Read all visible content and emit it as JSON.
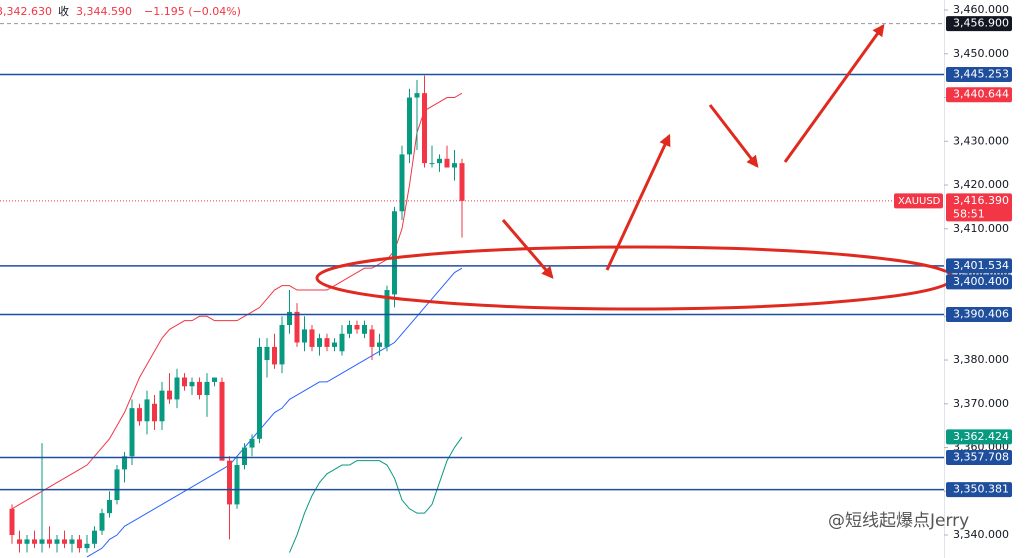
{
  "header": {
    "low": "3,342.630",
    "close_label": "收",
    "close": "3,344.590",
    "change": "−1.195 (−0.04%)"
  },
  "watermark": "@短线起爆点Jerry",
  "chart_data": {
    "type": "candlestick",
    "ylim": [
      3334.75,
      3462.29
    ],
    "yticks": [
      {
        "value": 3340,
        "label": "3,340.000"
      },
      {
        "value": 3350,
        "label": "3,350.000"
      },
      {
        "value": 3360,
        "label": "3,360.000"
      },
      {
        "value": 3370,
        "label": "3,370.000"
      },
      {
        "value": 3380,
        "label": "3,380.000"
      },
      {
        "value": 3390,
        "label": "3,390.000"
      },
      {
        "value": 3400,
        "label": "3,400.000"
      },
      {
        "value": 3410,
        "label": "3,410.000"
      },
      {
        "value": 3420,
        "label": "3,420.000"
      },
      {
        "value": 3430,
        "label": "3,430.000"
      },
      {
        "value": 3440,
        "label": "3,440.000"
      },
      {
        "value": 3450,
        "label": "3,450.000"
      },
      {
        "value": 3460,
        "label": "3,460.000"
      }
    ],
    "categories": [
      null,
      null,
      null,
      null,
      null,
      null,
      null,
      null,
      null,
      null,
      null,
      null,
      null,
      null,
      null,
      null,
      null,
      null,
      null,
      null,
      null,
      null,
      null,
      null,
      null,
      null,
      null,
      null,
      null,
      null,
      null,
      null,
      null,
      null,
      null,
      null,
      null,
      null,
      null,
      null,
      null,
      null,
      null,
      null,
      null,
      null,
      null,
      null,
      null,
      null,
      null,
      null,
      null,
      null,
      null,
      null,
      null,
      null,
      null,
      null,
      null
    ],
    "up_color": "#089981",
    "down_color": "#f23645",
    "open": [
      3346,
      3339,
      3338,
      3339,
      3338,
      3339,
      3338,
      3339,
      3338,
      3339,
      3337,
      3338,
      3341,
      3345,
      3348,
      3355,
      3358,
      3369,
      3366,
      3370,
      3366,
      3373,
      3371,
      3376,
      3374,
      3375,
      3372,
      3375,
      3375,
      3357,
      3347,
      3356,
      3360,
      3362,
      3380,
      3383,
      3379,
      3388,
      3391,
      3384,
      3387,
      3383,
      3385,
      3383,
      3382,
      3386,
      3388,
      3386,
      3387,
      3383,
      3383,
      3395,
      3414,
      3427,
      3440,
      3441,
      3425,
      3425,
      3426,
      3424,
      3425
    ],
    "high": [
      3347,
      3341,
      3340,
      3341,
      3361,
      3342,
      3340,
      3341,
      3340,
      3340,
      3340,
      3342,
      3346,
      3350,
      3356,
      3359,
      3371,
      3370,
      3373,
      3372,
      3375,
      3377,
      3378,
      3377,
      3376,
      3376,
      3377,
      3376,
      3376,
      3358,
      3358,
      3361,
      3363,
      3385,
      3385,
      3386,
      3390,
      3396,
      3393,
      3390,
      3388,
      3386,
      3386,
      3385,
      3388,
      3389,
      3389,
      3389,
      3388,
      3386,
      3397,
      3415,
      3429,
      3442,
      3444,
      3445,
      3429,
      3427,
      3429,
      3428,
      3426
    ],
    "low": [
      3338,
      3336,
      3336,
      3337,
      3336,
      3337,
      3336,
      3337,
      3336,
      3336,
      3336,
      3337,
      3340,
      3344,
      3347,
      3352,
      3356,
      3365,
      3363,
      3364,
      3364,
      3370,
      3369,
      3373,
      3372,
      3371,
      3367,
      3374,
      3357,
      3339,
      3346,
      3355,
      3358,
      3361,
      3376,
      3378,
      3377,
      3386,
      3383,
      3382,
      3382,
      3381,
      3382,
      3382,
      3381,
      3385,
      3386,
      3385,
      3380,
      3381,
      3382,
      3392,
      3412,
      3425,
      3428,
      3424,
      3424,
      3423,
      3424,
      3421,
      3408
    ],
    "close": [
      3340,
      3338,
      3339,
      3338,
      3339,
      3338,
      3339,
      3338,
      3339,
      3337,
      3338,
      3341,
      3345,
      3348,
      3355,
      3358,
      3369,
      3366,
      3371,
      3366,
      3373,
      3371,
      3376,
      3374,
      3375,
      3372,
      3375,
      3376,
      3357,
      3347,
      3356,
      3360,
      3362,
      3383,
      3383,
      3379,
      3388,
      3391,
      3384,
      3387,
      3383,
      3385,
      3383,
      3384,
      3386,
      3388,
      3387,
      3388,
      3383,
      3384,
      3396,
      3414,
      3427,
      3440,
      3441,
      3425,
      3425,
      3426,
      3424,
      3425,
      3416.39
    ],
    "bands": [
      {
        "color": "#f23645",
        "values": [
          3346,
          3347,
          3348,
          3349,
          3350,
          3351,
          3352,
          3353,
          3354,
          3355,
          3356,
          3358,
          3360,
          3362,
          3365,
          3368,
          3372,
          3376,
          3379,
          3382,
          3385,
          3387,
          3388,
          3389,
          3389,
          3390,
          3390,
          3389,
          3389,
          3389,
          3389,
          3390,
          3391,
          3392,
          3394,
          3396,
          3397,
          3397,
          3396,
          3396,
          3396,
          3396,
          3396,
          3397,
          3398,
          3399,
          3400,
          3401,
          3401,
          3402,
          3403,
          3405,
          3410,
          3420,
          3432,
          3437,
          3438,
          3439,
          3440,
          3440,
          3441
        ]
      },
      {
        "color": "#2962ff",
        "values": [
          null,
          null,
          null,
          null,
          null,
          null,
          null,
          null,
          null,
          null,
          3335,
          3336,
          3337,
          3339,
          3340,
          3342,
          3343,
          3344,
          3345,
          3346,
          3347,
          3348,
          3349,
          3350,
          3351,
          3352,
          3353,
          3354,
          3355,
          3356,
          3358,
          3360,
          3362,
          3364,
          3366,
          3368,
          3369,
          3371,
          3372,
          3373,
          3374,
          3375,
          3375,
          3376,
          3377,
          3378,
          3379,
          3380,
          3381,
          3382,
          3383,
          3384,
          3386,
          3388,
          3390,
          3392,
          3394,
          3396,
          3398,
          3400,
          3401
        ]
      },
      {
        "color": "#089981",
        "values": [
          null,
          null,
          null,
          null,
          null,
          null,
          null,
          null,
          null,
          null,
          null,
          null,
          null,
          null,
          null,
          null,
          null,
          null,
          null,
          null,
          null,
          null,
          null,
          null,
          null,
          null,
          null,
          null,
          null,
          null,
          null,
          null,
          null,
          null,
          null,
          null,
          null,
          3336,
          3340,
          3345,
          3349,
          3352,
          3354,
          3355,
          3356,
          3356,
          3357,
          3357,
          3357,
          3357,
          3356,
          3353,
          3348,
          3346,
          3345,
          3345,
          3347,
          3352,
          3357,
          3360,
          3362.4
        ]
      }
    ],
    "levels": [
      {
        "value": 3456.9,
        "label": "3,456.900",
        "color": "#131722",
        "style": "dashed"
      },
      {
        "value": 3445.253,
        "label": "3,445.253",
        "color": "#1f4e9c",
        "style": "solid"
      },
      {
        "value": 3440.644,
        "label": "3,440.644",
        "color": "#f23645",
        "style": "none"
      },
      {
        "value": 3416.39,
        "label": "3,416.390",
        "color": "#f23645",
        "style": "dotted",
        "countdown": "58:51",
        "symbol": "XAUUSD"
      },
      {
        "value": 3401.534,
        "label": "3,401.534",
        "color": "#1f4e9c",
        "style": "solid"
      },
      {
        "value": 3400.4,
        "label": "3,400.400",
        "color": "#1f4e9c",
        "style": "none"
      },
      {
        "value": 3390.406,
        "label": "3,390.406",
        "color": "#1f4e9c",
        "style": "solid"
      },
      {
        "value": 3362.424,
        "label": "3,362.424",
        "color": "#089981",
        "style": "none"
      },
      {
        "value": 3357.708,
        "label": "3,357.708",
        "color": "#1f4e9c",
        "style": "solid"
      },
      {
        "value": 3350.381,
        "label": "3,350.381",
        "color": "#1f4e9c",
        "style": "solid"
      }
    ]
  }
}
